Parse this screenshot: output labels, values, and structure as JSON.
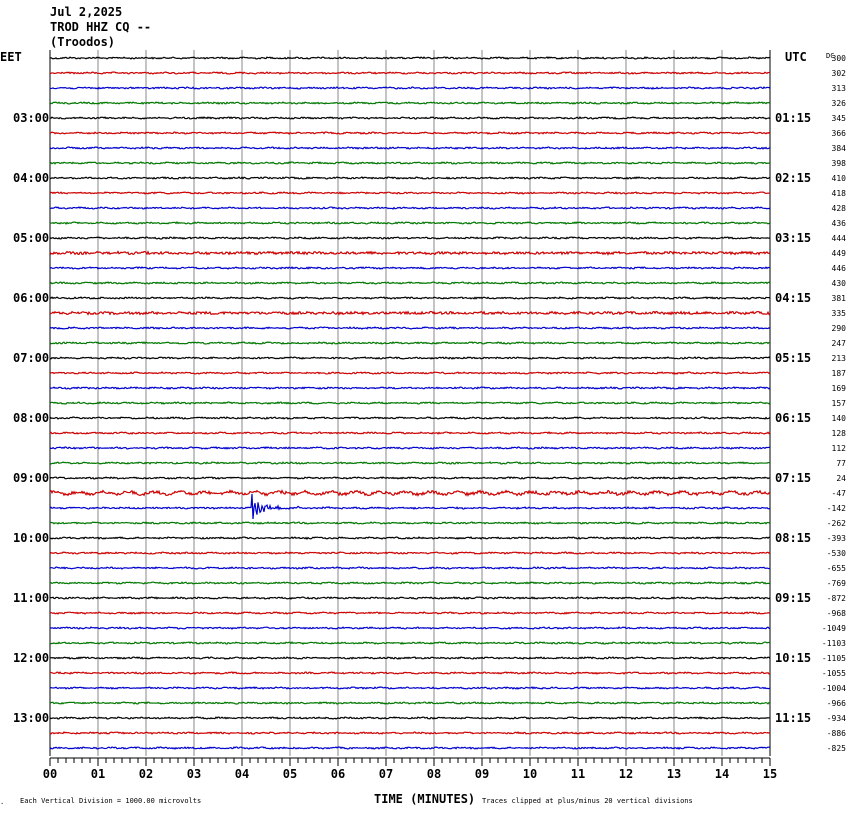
{
  "header": {
    "date": "Jul 2,2025",
    "station": "TROD HHZ CQ --",
    "location": "(Troodos)"
  },
  "left_zone": "EET",
  "right_zone": "UTC",
  "dc_label": "DC",
  "footer": {
    "division_note": "Each Vertical Division = 1000.00 microvolts",
    "xaxis_title": "TIME (MINUTES)",
    "clip_note": "Traces clipped at plus/minus 20 vertical divisions"
  },
  "chart_data": {
    "type": "line",
    "x_ticks": [
      "00",
      "01",
      "02",
      "03",
      "04",
      "05",
      "06",
      "07",
      "08",
      "09",
      "10",
      "11",
      "12",
      "13",
      "14",
      "15"
    ],
    "xlim": [
      0,
      15
    ],
    "grid": true,
    "trace_colors": [
      "#000000",
      "#cc0000",
      "#0000cc",
      "#007700"
    ],
    "left_hour_labels": [
      "03:00",
      "04:00",
      "05:00",
      "06:00",
      "07:00",
      "08:00",
      "09:00",
      "10:00",
      "11:00",
      "12:00",
      "13:00"
    ],
    "right_hour_labels": [
      "01:15",
      "02:15",
      "03:15",
      "04:15",
      "05:15",
      "06:15",
      "07:15",
      "08:15",
      "09:15",
      "10:15",
      "11:15"
    ],
    "dc_offsets": [
      "300",
      "302",
      "313",
      "326",
      "345",
      "366",
      "384",
      "398",
      "410",
      "418",
      "428",
      "436",
      "444",
      "449",
      "446",
      "430",
      "381",
      "335",
      "290",
      "247",
      "213",
      "187",
      "169",
      "157",
      "140",
      "128",
      "112",
      "77",
      "24",
      "-47",
      "-142",
      "-262",
      "-393",
      "-530",
      "-655",
      "-769",
      "-872",
      "-968",
      "-1049",
      "-1103",
      "-1105",
      "-1055",
      "-1004",
      "-966",
      "-934",
      "-886",
      "-825"
    ],
    "event": {
      "trace_index": 30,
      "onset_minute": 4.2
    }
  }
}
